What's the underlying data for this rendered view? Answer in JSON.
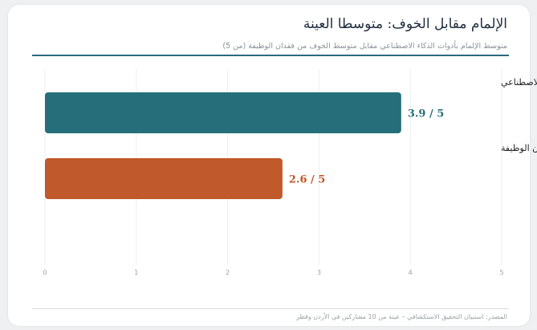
{
  "header": {
    "title": "الإلمام مقابل الخوف: متوسطا العينة",
    "subtitle": "متوسط الإلمام بأدوات الذكاء الاصطناعي مقابل متوسط الخوف من فقدان الوظيفة (من 5)"
  },
  "footer": {
    "source": "المصدر: استبيان التحقيق الاستكشافي – عينة من 10 مشاركين في الأردن وقطر"
  },
  "chart_data": {
    "type": "bar",
    "orientation": "horizontal",
    "categories": [
      "مستوى الإلمام بأدوات الذكاء الاصطناعي",
      "مستوى الخوف من فقدان الوظيفة"
    ],
    "values": [
      3.9,
      2.6
    ],
    "value_labels": [
      "3.9 / 5",
      "2.6 / 5"
    ],
    "colors": [
      "#266f7a",
      "#c0592c"
    ],
    "xlim": [
      0,
      5
    ],
    "ticks": [
      "0",
      "1",
      "2",
      "3",
      "4",
      "5"
    ],
    "grid": true
  }
}
